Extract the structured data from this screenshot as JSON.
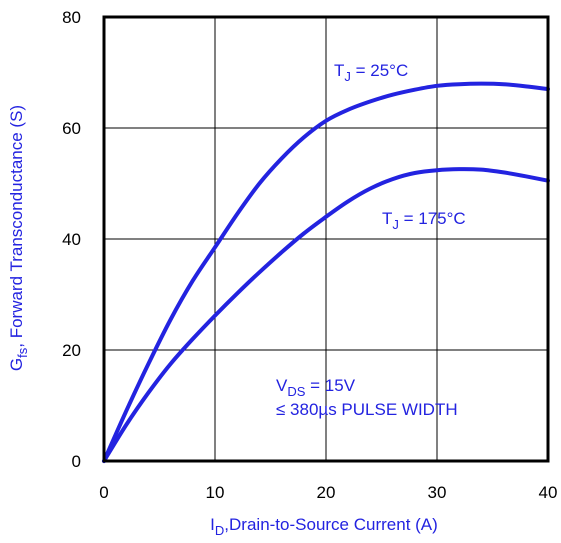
{
  "colors": {
    "curve": "#2323e0",
    "label": "#2323e0",
    "frame": "#000000",
    "grid": "#000000"
  },
  "chart_data": {
    "type": "line",
    "title": "",
    "xlim": [
      0,
      40
    ],
    "ylim": [
      0,
      80
    ],
    "xticks": [
      "0",
      "10",
      "20",
      "30",
      "40"
    ],
    "yticks": [
      "0",
      "20",
      "40",
      "60",
      "80"
    ],
    "grid": true,
    "xlabel": {
      "main": "I",
      "sub": "D",
      "rest": ",Drain-to-Source Current (A)"
    },
    "ylabel": {
      "main": "G",
      "sub": "fs",
      "rest": ", Forward Transconductance (S)"
    },
    "series": [
      {
        "name": "TJ = 25°C",
        "label": {
          "main": "T",
          "sub": "J",
          "rest": " = 25°C"
        },
        "x": [
          0,
          2,
          4,
          6,
          8,
          10,
          12,
          14,
          16,
          18,
          20,
          22,
          24,
          26,
          28,
          30,
          32,
          34,
          36,
          38,
          40
        ],
        "y": [
          0,
          9,
          17.5,
          25.5,
          32.5,
          38.5,
          44.5,
          50,
          54.5,
          58.3,
          61.3,
          63.3,
          64.8,
          66,
          66.9,
          67.6,
          67.9,
          68,
          67.9,
          67.5,
          67
        ]
      },
      {
        "name": "TJ = 175°C",
        "label": {
          "main": "T",
          "sub": "J",
          "rest": " = 175°C"
        },
        "x": [
          0,
          2,
          4,
          6,
          8,
          10,
          12,
          14,
          16,
          18,
          20,
          22,
          24,
          26,
          28,
          30,
          32,
          34,
          36,
          38,
          40
        ],
        "y": [
          0,
          6.5,
          12.3,
          17.5,
          22,
          26.2,
          30.2,
          34,
          37.6,
          41,
          44,
          46.8,
          49.1,
          50.8,
          51.9,
          52.4,
          52.6,
          52.5,
          52,
          51.3,
          50.5
        ]
      }
    ],
    "annotations": [
      {
        "main": "V",
        "sub": "DS",
        "rest": " = 15V"
      },
      {
        "main": "≤ 380µs PULSE WIDTH",
        "sub": "",
        "rest": ""
      }
    ]
  }
}
